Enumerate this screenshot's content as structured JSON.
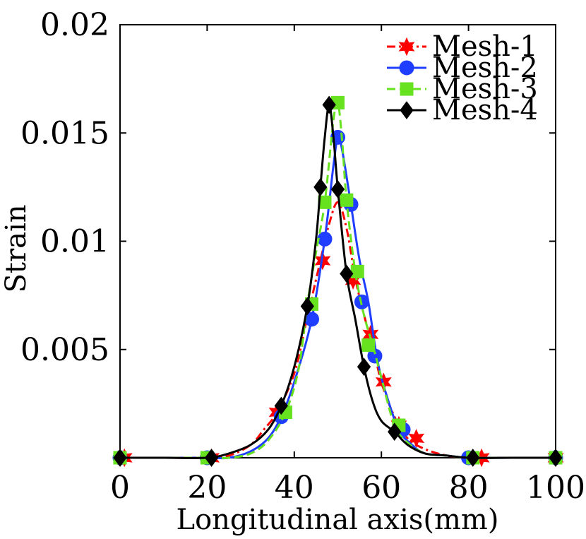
{
  "chart_data": {
    "type": "line",
    "title": "",
    "xlabel": "Longitudinal axis(mm)",
    "ylabel": "Strain",
    "xlim": [
      0,
      100
    ],
    "ylim": [
      0,
      0.02
    ],
    "xticks": [
      0,
      20,
      40,
      60,
      80,
      100
    ],
    "xtick_labels": [
      "0",
      "20",
      "40",
      "60",
      "80",
      "100"
    ],
    "yticks": [
      0.005,
      0.01,
      0.015,
      0.02
    ],
    "ytick_labels": [
      "0.005",
      "0.01",
      "0.015",
      "0.02"
    ],
    "grid": false,
    "legend_position": "top-right",
    "series": [
      {
        "name": "Mesh-1",
        "color": "#ff0000",
        "line_style": "dashdot",
        "marker": "hexagram",
        "x": [
          0,
          10,
          20,
          25,
          30,
          33,
          36,
          40,
          43,
          46,
          48,
          50,
          52,
          54,
          56,
          58,
          60,
          63,
          66,
          70,
          75,
          80,
          83,
          90,
          100
        ],
        "y": [
          0,
          0,
          0,
          0.0001,
          0.0006,
          0.0013,
          0.0021,
          0.0039,
          0.0065,
          0.0091,
          0.0108,
          0.0118,
          0.0106,
          0.0083,
          0.0066,
          0.0052,
          0.0035,
          0.0019,
          0.0009,
          0.0004,
          0.0001,
          0,
          0,
          0,
          0
        ],
        "marker_x": [
          1,
          21,
          36,
          46.5,
          53.5,
          57.5,
          60.5,
          64,
          68,
          83,
          100
        ],
        "marker_y": [
          0,
          0,
          0.0021,
          0.0091,
          0.0082,
          0.0057,
          0.0035,
          0.0015,
          0.0009,
          0,
          0
        ]
      },
      {
        "name": "Mesh-2",
        "color": "#1f3eff",
        "line_style": "solid",
        "marker": "circle",
        "x": [
          0,
          10,
          20,
          25,
          30,
          34,
          37,
          40,
          44,
          47,
          49,
          50,
          51,
          53,
          55,
          57,
          59,
          61,
          64,
          67,
          70,
          75,
          80,
          90,
          100
        ],
        "y": [
          0,
          0,
          0,
          0,
          0.0003,
          0.0009,
          0.0019,
          0.0035,
          0.0064,
          0.0101,
          0.0135,
          0.0148,
          0.0142,
          0.0117,
          0.0091,
          0.0072,
          0.0046,
          0.003,
          0.0013,
          0.0006,
          0.0002,
          0.0001,
          0,
          0,
          0
        ],
        "marker_x": [
          0,
          20,
          37,
          44,
          47,
          50,
          53,
          55.5,
          58.5,
          65,
          80,
          100
        ],
        "marker_y": [
          0,
          0,
          0.0019,
          0.0064,
          0.0101,
          0.0148,
          0.0117,
          0.0072,
          0.0047,
          0.0013,
          0,
          0
        ]
      },
      {
        "name": "Mesh-3",
        "color": "#66e21f",
        "line_style": "dashed",
        "marker": "square",
        "x": [
          0,
          10,
          20,
          25,
          30,
          34,
          38,
          41,
          43,
          45,
          47,
          49,
          50,
          51,
          52,
          54,
          56,
          58,
          60,
          63,
          66,
          70,
          75,
          80,
          90,
          100
        ],
        "y": [
          0,
          0,
          0,
          0,
          0.0002,
          0.0008,
          0.0021,
          0.0041,
          0.0071,
          0.0095,
          0.0118,
          0.0156,
          0.0164,
          0.0146,
          0.0119,
          0.0086,
          0.0066,
          0.0052,
          0.0037,
          0.0015,
          0.0007,
          0.0002,
          0.0001,
          0,
          0,
          0
        ],
        "marker_x": [
          0,
          20,
          38,
          44,
          47,
          50,
          52,
          54.5,
          57,
          64,
          81,
          100
        ],
        "marker_y": [
          0,
          0,
          0.0021,
          0.0071,
          0.0118,
          0.0164,
          0.0119,
          0.0086,
          0.0052,
          0.0015,
          0,
          0
        ]
      },
      {
        "name": "Mesh-4",
        "color": "#000000",
        "line_style": "solid",
        "marker": "diamond",
        "x": [
          0,
          10,
          20,
          25,
          30,
          34,
          37,
          40,
          43,
          45,
          46,
          47,
          48,
          49,
          50,
          52,
          54,
          56,
          58,
          60,
          63,
          66,
          70,
          75,
          80,
          90,
          100
        ],
        "y": [
          0,
          0,
          0,
          0.0002,
          0.0006,
          0.0013,
          0.0024,
          0.0042,
          0.007,
          0.0101,
          0.0125,
          0.0148,
          0.0163,
          0.0148,
          0.0124,
          0.0085,
          0.0064,
          0.0042,
          0.0026,
          0.0017,
          0.0012,
          0.0006,
          0.0002,
          0.0001,
          0,
          0,
          0
        ],
        "marker_x": [
          0,
          21,
          37,
          43,
          46,
          48,
          50,
          52,
          56,
          63,
          81,
          100
        ],
        "marker_y": [
          0,
          0,
          0.0024,
          0.007,
          0.0125,
          0.0163,
          0.0124,
          0.0085,
          0.0042,
          0.0012,
          0,
          0
        ]
      }
    ]
  }
}
